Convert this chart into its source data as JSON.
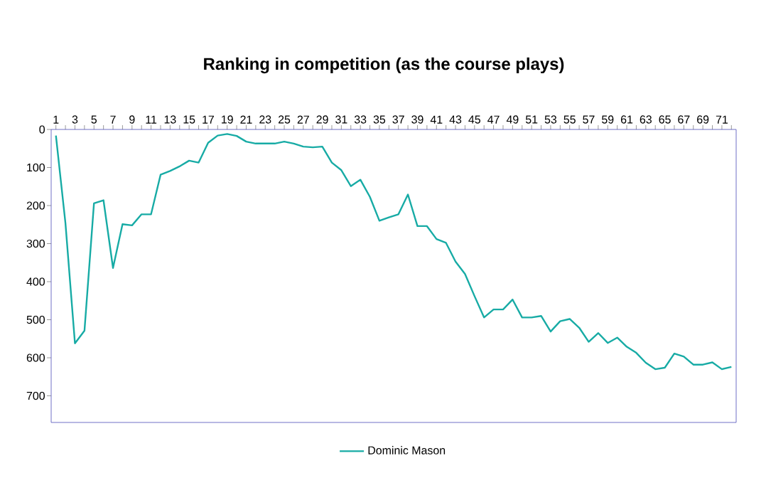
{
  "chart_data": {
    "type": "line",
    "title": "Ranking in competition (as the course plays)",
    "categories": [
      "1",
      null,
      "3",
      null,
      "5",
      null,
      "7",
      null,
      "9",
      null,
      "11",
      null,
      "13",
      null,
      "15",
      null,
      "17",
      null,
      "19",
      null,
      "21",
      null,
      "23",
      null,
      "25",
      null,
      "27",
      null,
      "29",
      null,
      "31",
      null,
      "33",
      null,
      "35",
      null,
      "37",
      null,
      "39",
      null,
      "41",
      null,
      "43",
      null,
      "45",
      null,
      "47",
      null,
      "49",
      null,
      "51",
      null,
      "53",
      null,
      "55",
      null,
      "57",
      null,
      "59",
      null,
      "61",
      null,
      "63",
      null,
      "65",
      null,
      "67",
      null,
      "69",
      null,
      "71",
      null
    ],
    "series": [
      {
        "name": "Dominic Mason",
        "color": "#17aba5",
        "values": [
          16,
          246,
          562,
          529,
          194,
          186,
          364,
          249,
          252,
          223,
          223,
          119,
          109,
          97,
          82,
          87,
          35,
          16,
          12,
          17,
          32,
          37,
          37,
          37,
          32,
          37,
          45,
          47,
          45,
          87,
          107,
          149,
          132,
          177,
          240,
          231,
          223,
          171,
          254,
          254,
          288,
          298,
          347,
          380,
          438,
          494,
          473,
          473,
          447,
          494,
          494,
          490,
          531,
          504,
          498,
          521,
          558,
          535,
          561,
          547,
          571,
          587,
          613,
          630,
          626,
          589,
          597,
          618,
          618,
          612,
          630,
          624
        ]
      }
    ],
    "ylim": [
      770,
      0
    ],
    "yticks": [
      0,
      100,
      200,
      300,
      400,
      500,
      600,
      700
    ],
    "legend": "bottom",
    "marker": "none",
    "line_style": "solid"
  }
}
